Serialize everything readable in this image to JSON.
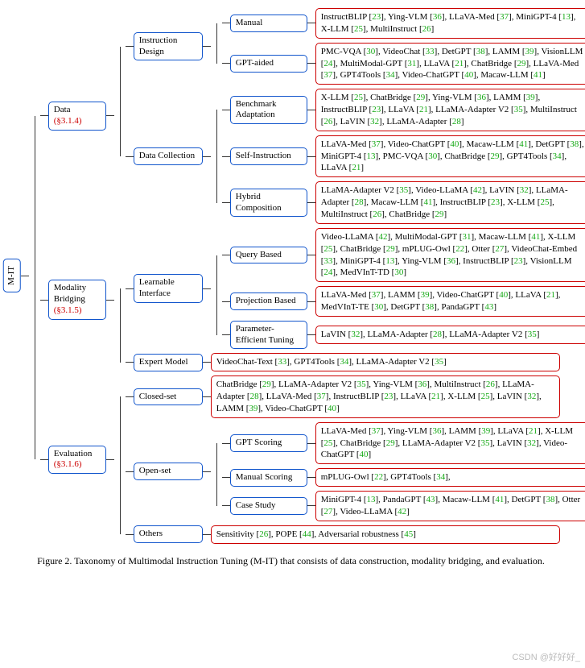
{
  "root": "M-IT",
  "caption": "Figure 2. Taxonomy of Multimodal Instruction Tuning (M-IT) that consists of data construction, modality bridging, and evaluation.",
  "watermark": "CSDN @好好好_",
  "categories": [
    {
      "label": "Data",
      "section": "(§3.1.4)",
      "children": [
        {
          "label": "Instruction Design",
          "children": [
            {
              "label": "Manual",
              "leaf": [
                [
                  "InstructBLIP",
                  "23"
                ],
                [
                  "Ying-VLM",
                  "36"
                ],
                [
                  "LLaVA-Med",
                  "37"
                ],
                [
                  "MiniGPT-4",
                  "13"
                ],
                [
                  "X-LLM",
                  "25"
                ],
                [
                  "MultiInstruct",
                  "26"
                ]
              ]
            },
            {
              "label": "GPT-aided",
              "leaf": [
                [
                  "PMC-VQA",
                  "30"
                ],
                [
                  "VideoChat",
                  "33"
                ],
                [
                  "DetGPT",
                  "38"
                ],
                [
                  "LAMM",
                  "39"
                ],
                [
                  "VisionLLM",
                  "24"
                ],
                [
                  "MultiModal-GPT",
                  "31"
                ],
                [
                  "LLaVA",
                  "21"
                ],
                [
                  "ChatBridge",
                  "29"
                ],
                [
                  "LLaVA-Med",
                  "37"
                ],
                [
                  "GPT4Tools",
                  "34"
                ],
                [
                  "Video-ChatGPT",
                  "40"
                ],
                [
                  "Macaw-LLM",
                  "41"
                ]
              ]
            }
          ]
        },
        {
          "label": "Data Collection",
          "children": [
            {
              "label": "Benchmark Adaptation",
              "leaf": [
                [
                  "X-LLM",
                  "25"
                ],
                [
                  "ChatBridge",
                  "29"
                ],
                [
                  "Ying-VLM",
                  "36"
                ],
                [
                  "LAMM",
                  "39"
                ],
                [
                  "InstructBLIP",
                  "23"
                ],
                [
                  "LLaVA",
                  "21"
                ],
                [
                  "LLaMA-Adapter V2",
                  "35"
                ],
                [
                  "MultiInstruct",
                  "26"
                ],
                [
                  "LaVIN",
                  "32"
                ],
                [
                  "LLaMA-Adapter",
                  "28"
                ]
              ]
            },
            {
              "label": "Self-Instruction",
              "leaf": [
                [
                  "LLaVA-Med",
                  "37"
                ],
                [
                  "Video-ChatGPT",
                  "40"
                ],
                [
                  "Macaw-LLM",
                  "41"
                ],
                [
                  "DetGPT",
                  "38"
                ],
                [
                  "MiniGPT-4",
                  "13"
                ],
                [
                  "PMC-VQA",
                  "30"
                ],
                [
                  "ChatBridge",
                  "29"
                ],
                [
                  "GPT4Tools",
                  "34"
                ],
                [
                  "LLaVA",
                  "21"
                ]
              ]
            },
            {
              "label": "Hybrid Composition",
              "leaf": [
                [
                  "LLaMA-Adapter V2",
                  "35"
                ],
                [
                  "Video-LLaMA",
                  "42"
                ],
                [
                  "LaVIN",
                  "32"
                ],
                [
                  "LLaMA-Adapter",
                  "28"
                ],
                [
                  "Macaw-LLM",
                  "41"
                ],
                [
                  "InstructBLIP",
                  "23"
                ],
                [
                  "X-LLM",
                  "25"
                ],
                [
                  "MultiInstruct",
                  "26"
                ],
                [
                  "ChatBridge",
                  "29"
                ]
              ]
            }
          ]
        }
      ]
    },
    {
      "label": "Modality Bridging",
      "section": "(§3.1.5)",
      "children": [
        {
          "label": "Learnable Interface",
          "children": [
            {
              "label": "Query Based",
              "leaf": [
                [
                  "Video-LLaMA",
                  "42"
                ],
                [
                  "MultiModal-GPT",
                  "31"
                ],
                [
                  "Macaw-LLM",
                  "41"
                ],
                [
                  "X-LLM",
                  "25"
                ],
                [
                  "ChatBridge",
                  "29"
                ],
                [
                  "mPLUG-Owl",
                  "22"
                ],
                [
                  "Otter",
                  "27"
                ],
                [
                  "VideoChat-Embed",
                  "33"
                ],
                [
                  "MiniGPT-4",
                  "13"
                ],
                [
                  "Ying-VLM",
                  "36"
                ],
                [
                  "InstructBLIP",
                  "23"
                ],
                [
                  "VisionLLM",
                  "24"
                ],
                [
                  "MedVInT-TD",
                  "30"
                ]
              ]
            },
            {
              "label": "Projection Based",
              "leaf": [
                [
                  "LLaVA-Med",
                  "37"
                ],
                [
                  "LAMM",
                  "39"
                ],
                [
                  "Video-ChatGPT",
                  "40"
                ],
                [
                  "LLaVA",
                  "21"
                ],
                [
                  "MedVInT-TE",
                  "30"
                ],
                [
                  "DetGPT",
                  "38"
                ],
                [
                  "PandaGPT",
                  "43"
                ]
              ]
            },
            {
              "label": "Parameter-Efficient Tuning",
              "leaf": [
                [
                  "LaVIN",
                  "32"
                ],
                [
                  "LLaMA-Adapter",
                  "28"
                ],
                [
                  "LLaMA-Adapter V2",
                  "35"
                ]
              ]
            }
          ]
        },
        {
          "label": "Expert Model",
          "leaf": [
            [
              "VideoChat-Text",
              "33"
            ],
            [
              "GPT4Tools",
              "34"
            ],
            [
              "LLaMA-Adapter V2",
              "35"
            ]
          ]
        }
      ]
    },
    {
      "label": "Evaluation",
      "section": "(§3.1.6)",
      "children": [
        {
          "label": "Closed-set",
          "leaf": [
            [
              "ChatBridge",
              "29"
            ],
            [
              "LLaMA-Adapter V2",
              "35"
            ],
            [
              "Ying-VLM",
              "36"
            ],
            [
              "MultiInstruct",
              "26"
            ],
            [
              "LLaMA-Adapter",
              "28"
            ],
            [
              "LLaVA-Med",
              "37"
            ],
            [
              "InstructBLIP",
              "23"
            ],
            [
              "LLaVA",
              "21"
            ],
            [
              "X-LLM",
              "25"
            ],
            [
              "LaVIN",
              "32"
            ],
            [
              "LAMM",
              "39"
            ],
            [
              "Video-ChatGPT",
              "40"
            ]
          ]
        },
        {
          "label": "Open-set",
          "children": [
            {
              "label": "GPT Scoring",
              "leaf": [
                [
                  "LLaVA-Med",
                  "37"
                ],
                [
                  "Ying-VLM",
                  "36"
                ],
                [
                  "LAMM",
                  "39"
                ],
                [
                  "LLaVA",
                  "21"
                ],
                [
                  "X-LLM",
                  "25"
                ],
                [
                  "ChatBridge",
                  "29"
                ],
                [
                  "LLaMA-Adapter V2",
                  "35"
                ],
                [
                  "LaVIN",
                  "32"
                ],
                [
                  "Video-ChatGPT",
                  "40"
                ]
              ]
            },
            {
              "label": "Manual Scoring",
              "leaf": [
                [
                  "mPLUG-Owl",
                  "22"
                ],
                [
                  "GPT4Tools",
                  "34"
                ]
              ],
              "trailing": ","
            },
            {
              "label": "Case Study",
              "leaf": [
                [
                  "MiniGPT-4",
                  "13"
                ],
                [
                  "PandaGPT",
                  "43"
                ],
                [
                  "Macaw-LLM",
                  "41"
                ],
                [
                  "DetGPT",
                  "38"
                ],
                [
                  "Otter",
                  "27"
                ],
                [
                  "Video-LLaMA",
                  "42"
                ]
              ]
            }
          ]
        },
        {
          "label": "Others",
          "leaf": [
            [
              "Sensitivity",
              "26"
            ],
            [
              "POPE",
              "44"
            ],
            [
              "Adversarial robustness",
              "45"
            ]
          ]
        }
      ]
    }
  ],
  "widths": {
    "cat": 58,
    "sub": 72,
    "subsub": 82,
    "leaf": 330,
    "leaf_wide": 420
  }
}
